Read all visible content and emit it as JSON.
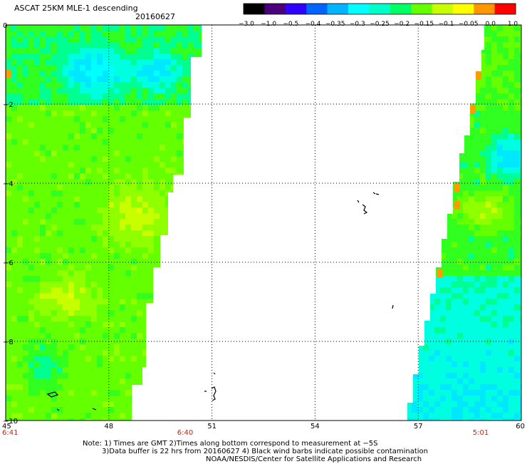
{
  "header": {
    "title": "ASCAT 25KM MLE-1 descending",
    "date": "20160627"
  },
  "colorbar": {
    "labels": [
      "−3.0",
      "−1.0",
      "−0.5",
      "−0.4",
      "−0.35",
      "−0.3",
      "−0.25",
      "−0.2",
      "−0.15",
      "−0.1",
      "−0.05",
      "0.0",
      "1.0"
    ],
    "colors": [
      "#000000",
      "#4a007a",
      "#3000ff",
      "#0064ff",
      "#00b4ff",
      "#00ffff",
      "#00ffc8",
      "#00ff64",
      "#64ff00",
      "#c8ff00",
      "#ffff00",
      "#ff9600",
      "#ff0000"
    ]
  },
  "axes": {
    "x_ticks": [
      "45",
      "48",
      "51",
      "54",
      "57",
      "60"
    ],
    "y_ticks": [
      "0",
      "−2",
      "−4",
      "−6",
      "−8",
      "−10"
    ],
    "time_labels": [
      "6:41",
      "6:40",
      "5:01"
    ]
  },
  "notes": {
    "line1": "Note: 1) Times are GMT 2)Times along bottom correspond to measurement at −5S",
    "line2": "3)Data buffer is 22 hrs from 20160627 4) Black wind barbs indicate possible contamination",
    "line3": "NOAA/NESDIS/Center for Satellite Applications and Research"
  },
  "map": {
    "lon_range": [
      45,
      60
    ],
    "lat_range": [
      -10,
      0
    ],
    "grid": true,
    "no_data_color": "#ffffff"
  }
}
